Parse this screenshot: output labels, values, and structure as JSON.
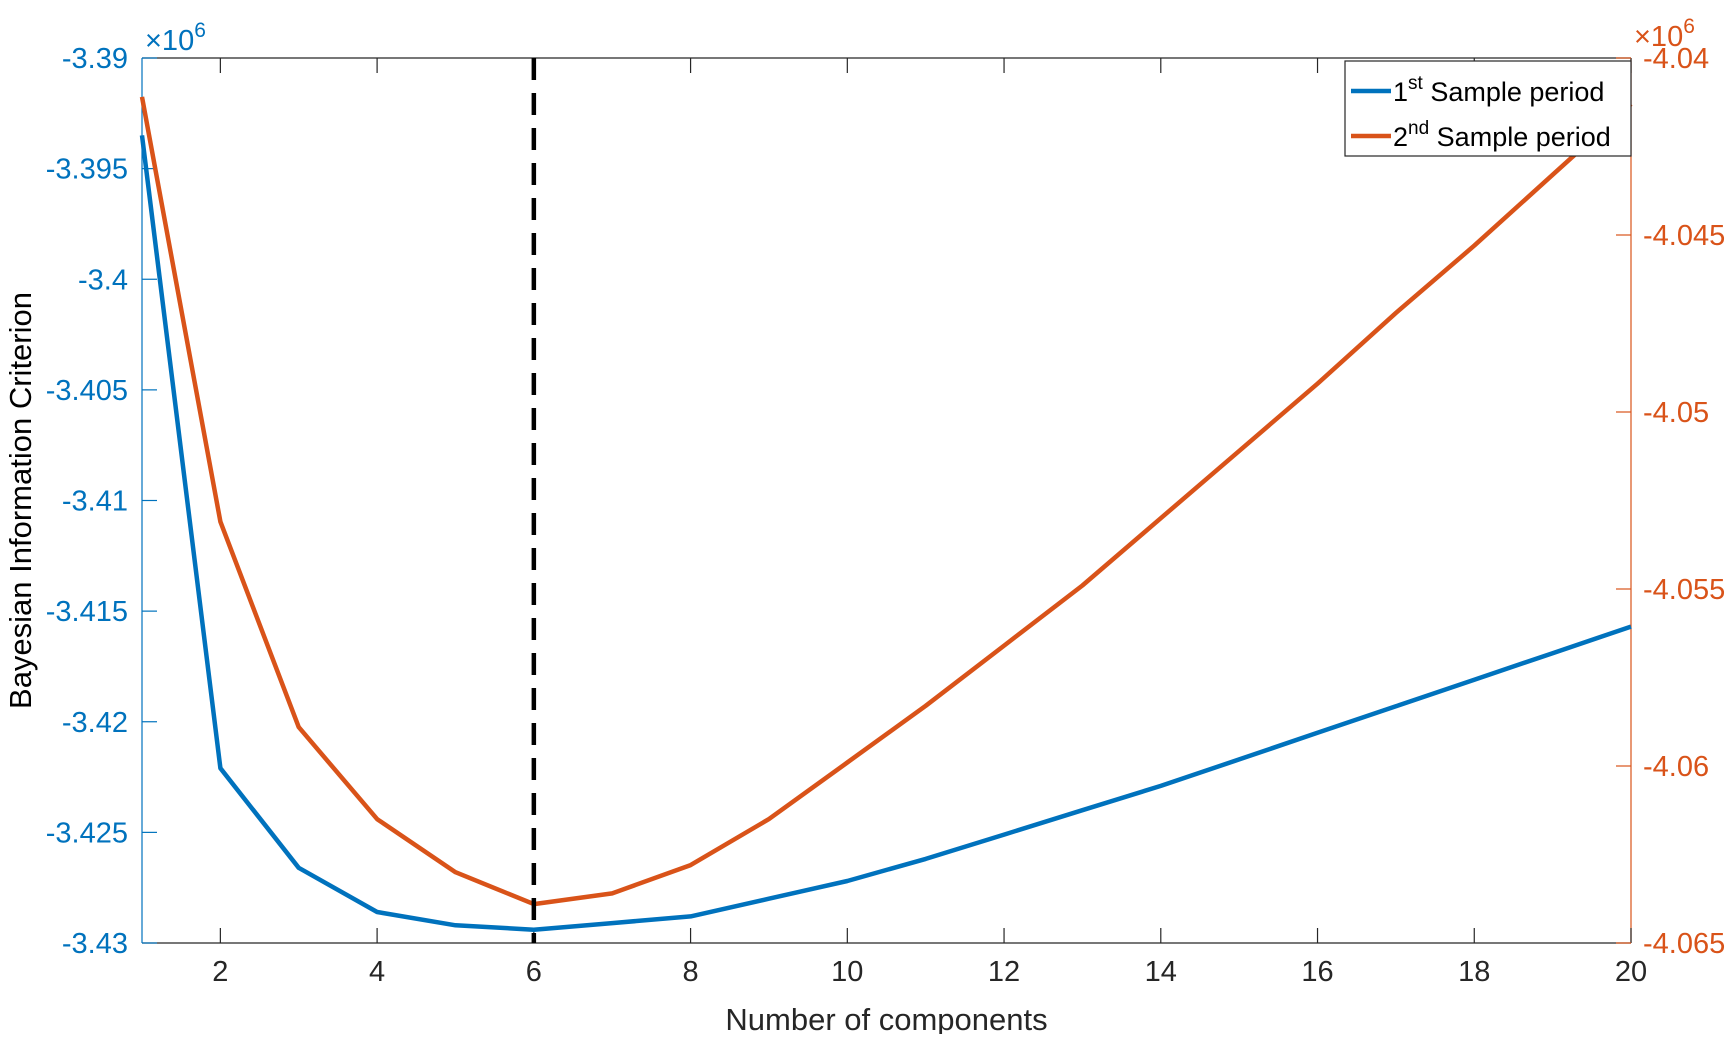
{
  "chart_data": {
    "type": "line",
    "xlabel": "Number of components",
    "ylabel_left": "Bayesian Information Criterion",
    "ylabel_right": "",
    "exponent_left": {
      "base": "×10",
      "power": "6"
    },
    "exponent_right": {
      "base": "×10",
      "power": "6"
    },
    "xlim": [
      1,
      20
    ],
    "ylim_left": [
      -3.43,
      -3.39
    ],
    "ylim_right": [
      -4.065,
      -4.04
    ],
    "x_ticks": [
      2,
      4,
      6,
      8,
      10,
      12,
      14,
      16,
      18,
      20
    ],
    "x_tick_labels": [
      "2",
      "4",
      "6",
      "8",
      "10",
      "12",
      "14",
      "16",
      "18",
      "20"
    ],
    "y_left_ticks": [
      -3.39,
      -3.395,
      -3.4,
      -3.405,
      -3.41,
      -3.415,
      -3.42,
      -3.425,
      -3.43
    ],
    "y_left_tick_labels": [
      "-3.39",
      "-3.395",
      "-3.4",
      "-3.405",
      "-3.41",
      "-3.415",
      "-3.42",
      "-3.425",
      "-3.43"
    ],
    "y_right_ticks": [
      -4.04,
      -4.045,
      -4.05,
      -4.055,
      -4.06,
      -4.065
    ],
    "y_right_tick_labels": [
      "-4.04",
      "-4.045",
      "-4.05",
      "-4.055",
      "-4.06",
      "-4.065"
    ],
    "vline_x": 6,
    "grid": false,
    "legend_position": "top-right",
    "x": [
      1,
      2,
      3,
      4,
      5,
      6,
      7,
      8,
      9,
      10,
      11,
      12,
      13,
      14,
      15,
      16,
      17,
      18,
      19,
      20
    ],
    "series": [
      {
        "name_prefix": "1",
        "name_sup": "st",
        "name_suffix": " Sample period",
        "axis": "left",
        "color": "#0072BD",
        "values": [
          -3.3935,
          -3.4221,
          -3.4266,
          -3.4286,
          -3.4292,
          -3.4294,
          -3.4291,
          -3.4288,
          -3.428,
          -3.4272,
          -3.4262,
          -3.4251,
          -3.424,
          -3.4229,
          -3.4217,
          -3.4205,
          -3.4193,
          -3.4181,
          -3.4169,
          -3.4157
        ]
      },
      {
        "name_prefix": "2",
        "name_sup": "nd",
        "name_suffix": " Sample period",
        "axis": "right",
        "color": "#D95319",
        "values": [
          -4.0411,
          -4.0531,
          -4.0589,
          -4.0615,
          -4.063,
          -4.0639,
          -4.0636,
          -4.0628,
          -4.0615,
          -4.0599,
          -4.0583,
          -4.0566,
          -4.0549,
          -4.053,
          -4.0511,
          -4.0492,
          -4.0472,
          -4.0453,
          -4.0433,
          -4.0413
        ]
      }
    ]
  }
}
